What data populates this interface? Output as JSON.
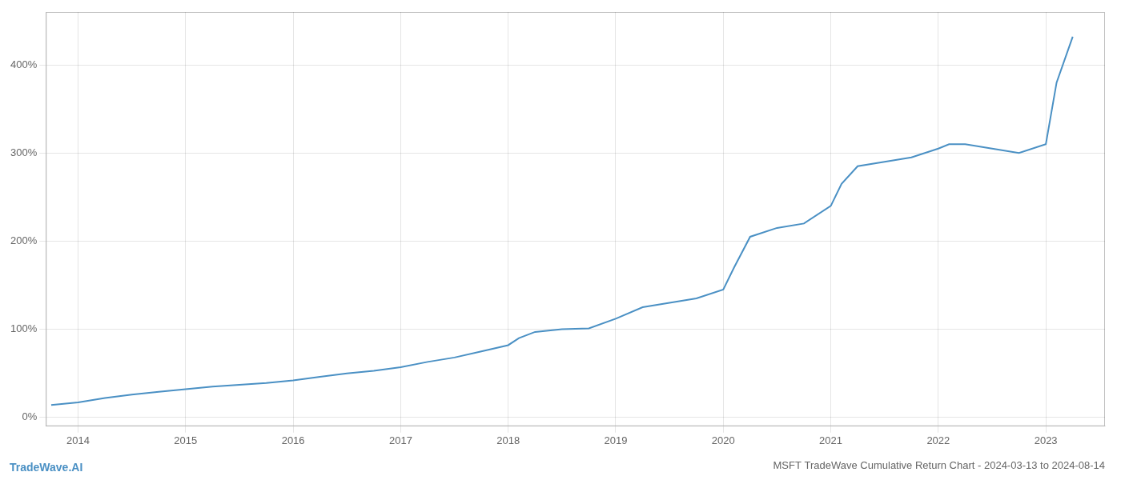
{
  "chart_data": {
    "type": "line",
    "title": "MSFT TradeWave Cumulative Return Chart - 2024-03-13 to 2024-08-14",
    "annotations": [
      "TradeWave.AI"
    ],
    "color": "#4a90c4",
    "grid": true,
    "x": [
      2013.75,
      2014.0,
      2014.25,
      2014.5,
      2014.75,
      2015.0,
      2015.25,
      2015.5,
      2015.75,
      2016.0,
      2016.25,
      2016.5,
      2016.75,
      2017.0,
      2017.25,
      2017.5,
      2017.75,
      2018.0,
      2018.1,
      2018.25,
      2018.5,
      2018.75,
      2019.0,
      2019.25,
      2019.5,
      2019.75,
      2020.0,
      2020.1,
      2020.25,
      2020.5,
      2020.75,
      2021.0,
      2021.1,
      2021.25,
      2021.5,
      2021.75,
      2022.0,
      2022.1,
      2022.25,
      2022.5,
      2022.75,
      2023.0,
      2023.1,
      2023.25
    ],
    "values": [
      14,
      17,
      22,
      26,
      29,
      32,
      35,
      37,
      39,
      42,
      46,
      50,
      53,
      57,
      63,
      68,
      75,
      82,
      90,
      97,
      100,
      101,
      112,
      125,
      130,
      135,
      145,
      170,
      205,
      215,
      220,
      240,
      265,
      285,
      290,
      295,
      305,
      310,
      310,
      305,
      300,
      310,
      380,
      432
    ],
    "xlim": [
      2013.7,
      2023.55
    ],
    "xticks": [
      2014,
      2015,
      2016,
      2017,
      2018,
      2019,
      2020,
      2021,
      2022,
      2023
    ],
    "ylim": [
      -10,
      460
    ],
    "yticks": [
      {
        "value": 0,
        "label": "0%"
      },
      {
        "value": 100,
        "label": "100%"
      },
      {
        "value": 200,
        "label": "200%"
      },
      {
        "value": 300,
        "label": "300%"
      },
      {
        "value": 400,
        "label": "400%"
      }
    ]
  }
}
